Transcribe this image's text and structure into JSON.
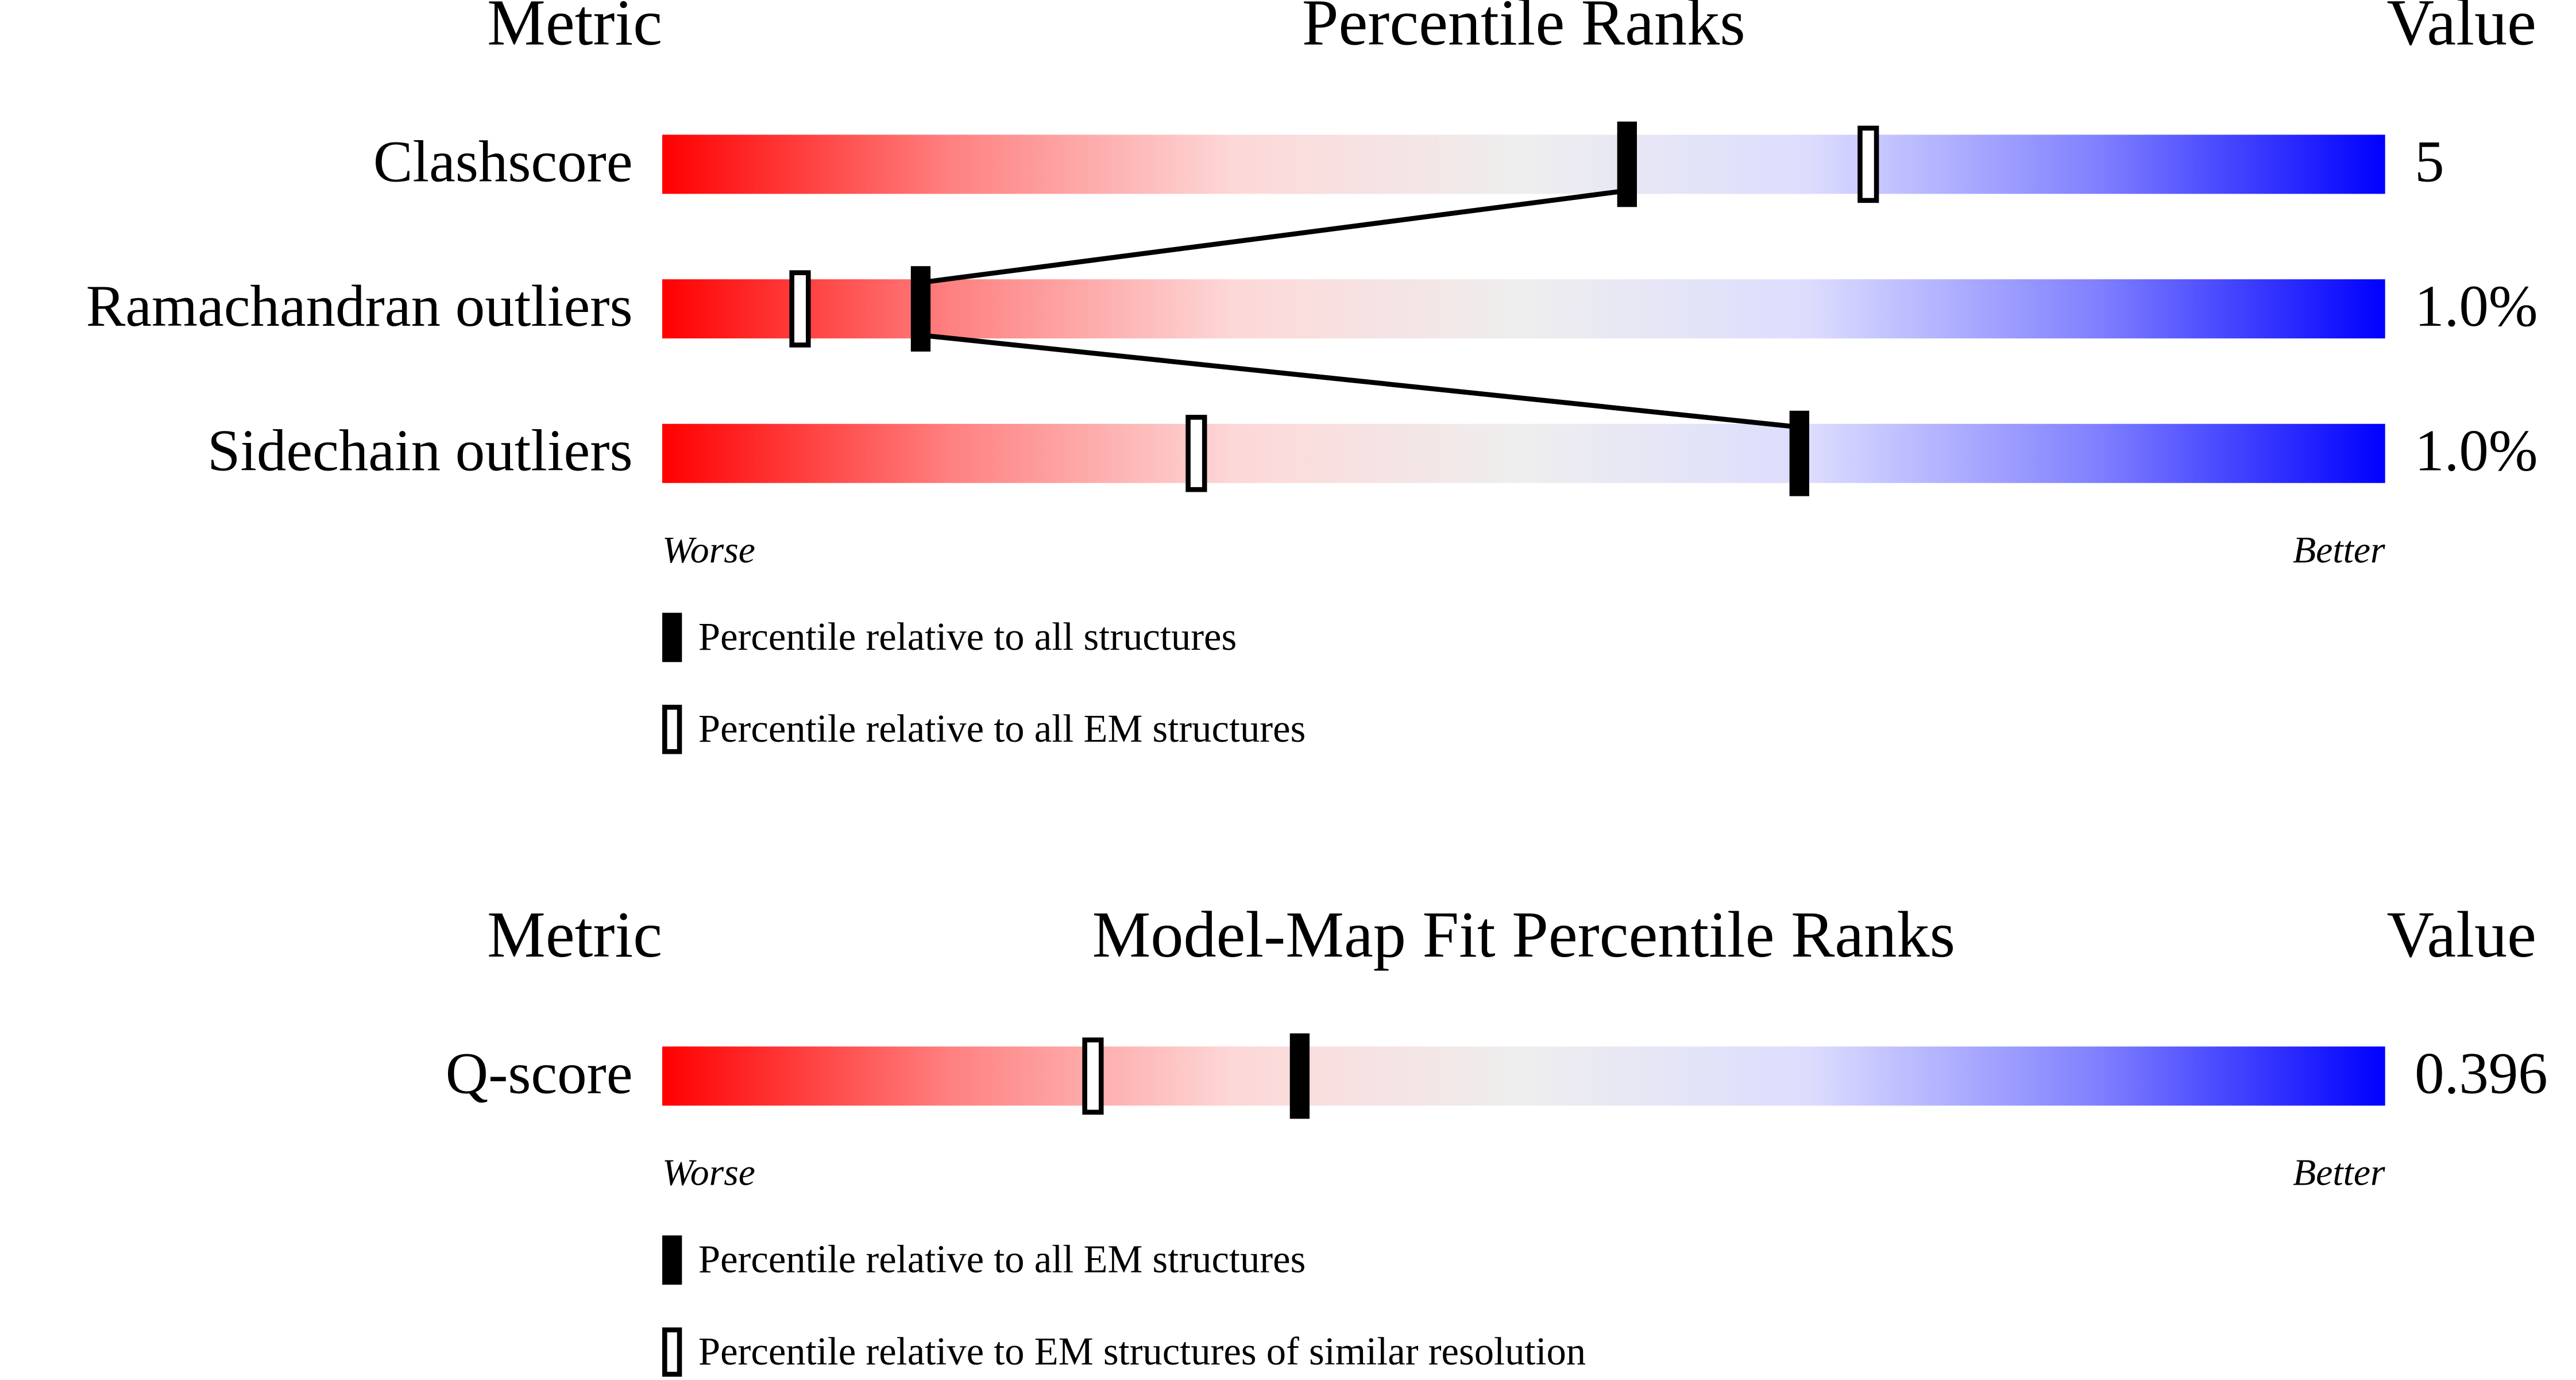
{
  "chart_data": [
    {
      "type": "percentile_slider",
      "title": "Percentile Ranks",
      "metric_header": "Metric",
      "value_header": "Value",
      "xlim": [
        0,
        100
      ],
      "categories": [
        "Clashscore",
        "Ramachandran outliers",
        "Sidechain outliers"
      ],
      "values": [
        5,
        1.0,
        1.0
      ],
      "value_labels": [
        "5",
        "1.0%",
        "1.0%"
      ],
      "series": [
        {
          "name": "Percentile relative to all structures",
          "style": "filled",
          "connected": true,
          "color": "#000000",
          "values": [
            56,
            15,
            66
          ]
        },
        {
          "name": "Percentile relative to all EM structures",
          "style": "open",
          "connected": false,
          "color": "#000000",
          "values": [
            70,
            8,
            31
          ]
        }
      ],
      "low_label": "Worse",
      "high_label": "Better",
      "gradient": [
        "#ff0000",
        "#ff8080",
        "#fdd8d8",
        "#eeeeee",
        "#dcdcff",
        "#8080ff",
        "#0000ff"
      ]
    },
    {
      "type": "percentile_slider",
      "title": "Model-Map Fit Percentile Ranks",
      "metric_header": "Metric",
      "value_header": "Value",
      "xlim": [
        0,
        100
      ],
      "categories": [
        "Q-score"
      ],
      "values": [
        0.396
      ],
      "value_labels": [
        "0.396"
      ],
      "series": [
        {
          "name": "Percentile relative to all EM structures",
          "style": "filled",
          "connected": false,
          "color": "#000000",
          "values": [
            37
          ]
        },
        {
          "name": "Percentile relative to EM structures of similar resolution",
          "style": "open",
          "connected": false,
          "color": "#000000",
          "values": [
            25
          ]
        }
      ],
      "low_label": "Worse",
      "high_label": "Better",
      "gradient": [
        "#ff0000",
        "#ff8080",
        "#fdd8d8",
        "#eeeeee",
        "#dcdcff",
        "#8080ff",
        "#0000ff"
      ]
    }
  ]
}
